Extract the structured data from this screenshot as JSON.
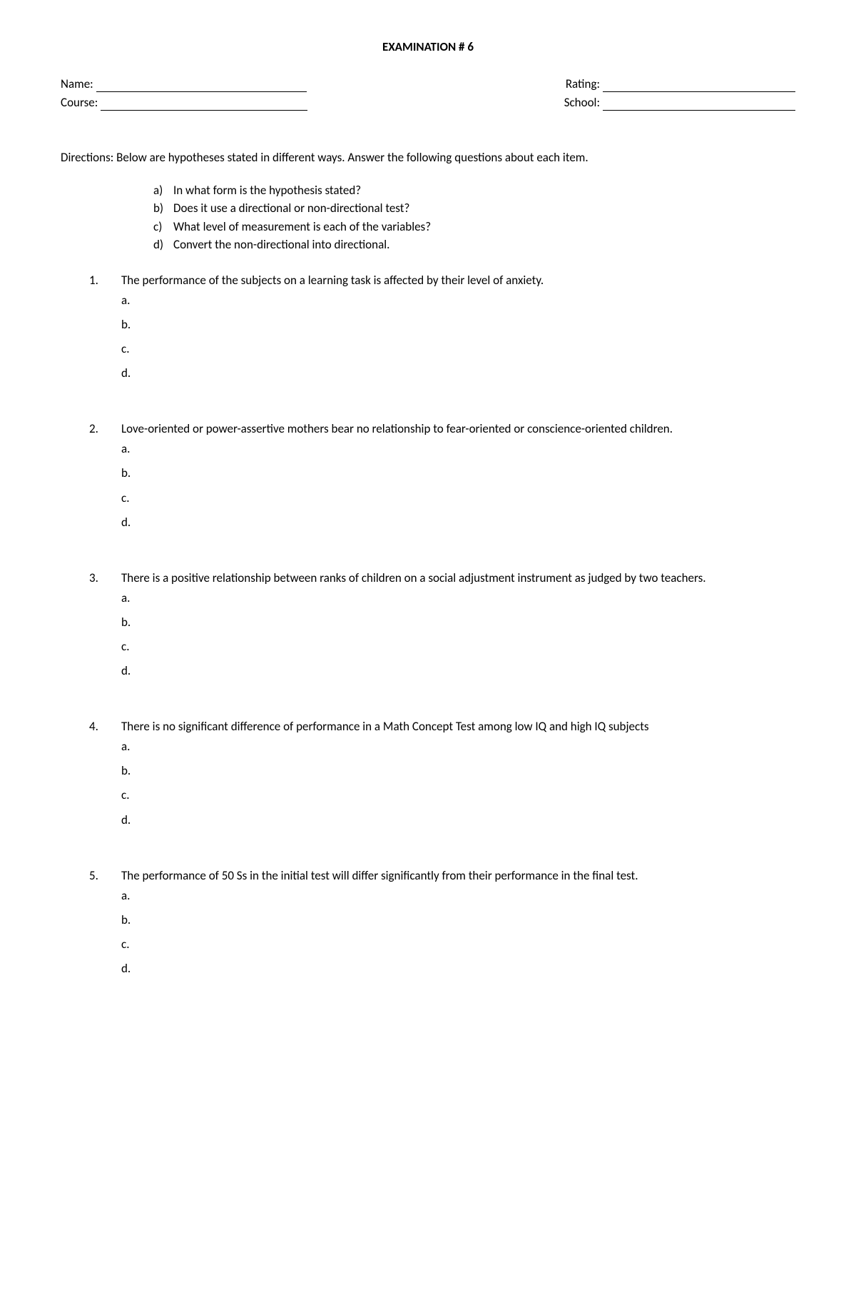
{
  "title": "EXAMINATION # 6",
  "info": {
    "name_label": "Name:",
    "course_label": "Course:",
    "rating_label": "Rating:",
    "school_label": "School:"
  },
  "directions": "Directions: Below are hypotheses stated in different ways. Answer the following questions about each item.",
  "sub_questions": [
    {
      "letter": "a)",
      "text": "In what form is the hypothesis stated?"
    },
    {
      "letter": "b)",
      "text": "Does it use a directional or non-directional test?"
    },
    {
      "letter": "c)",
      "text": "What level of measurement is each of the variables?"
    },
    {
      "letter": "d)",
      "text": "Convert the non-directional into directional."
    }
  ],
  "answer_letters": [
    "a.",
    "b.",
    "c.",
    "d."
  ],
  "questions": [
    {
      "num": "1.",
      "text": "The performance of the subjects on a learning task is affected by their level of anxiety."
    },
    {
      "num": "2.",
      "text": "Love-oriented or power-assertive mothers bear no relationship to fear-oriented or conscience-oriented children."
    },
    {
      "num": "3.",
      "text": "There is a positive relationship between ranks of children on a social adjustment instrument as judged by two teachers."
    },
    {
      "num": "4.",
      "text": "There is no significant difference of performance in a Math Concept Test among low IQ and high IQ subjects"
    },
    {
      "num": "5.",
      "text": "The performance of 50 Ss in the initial test will differ significantly from their performance in the final test."
    }
  ]
}
